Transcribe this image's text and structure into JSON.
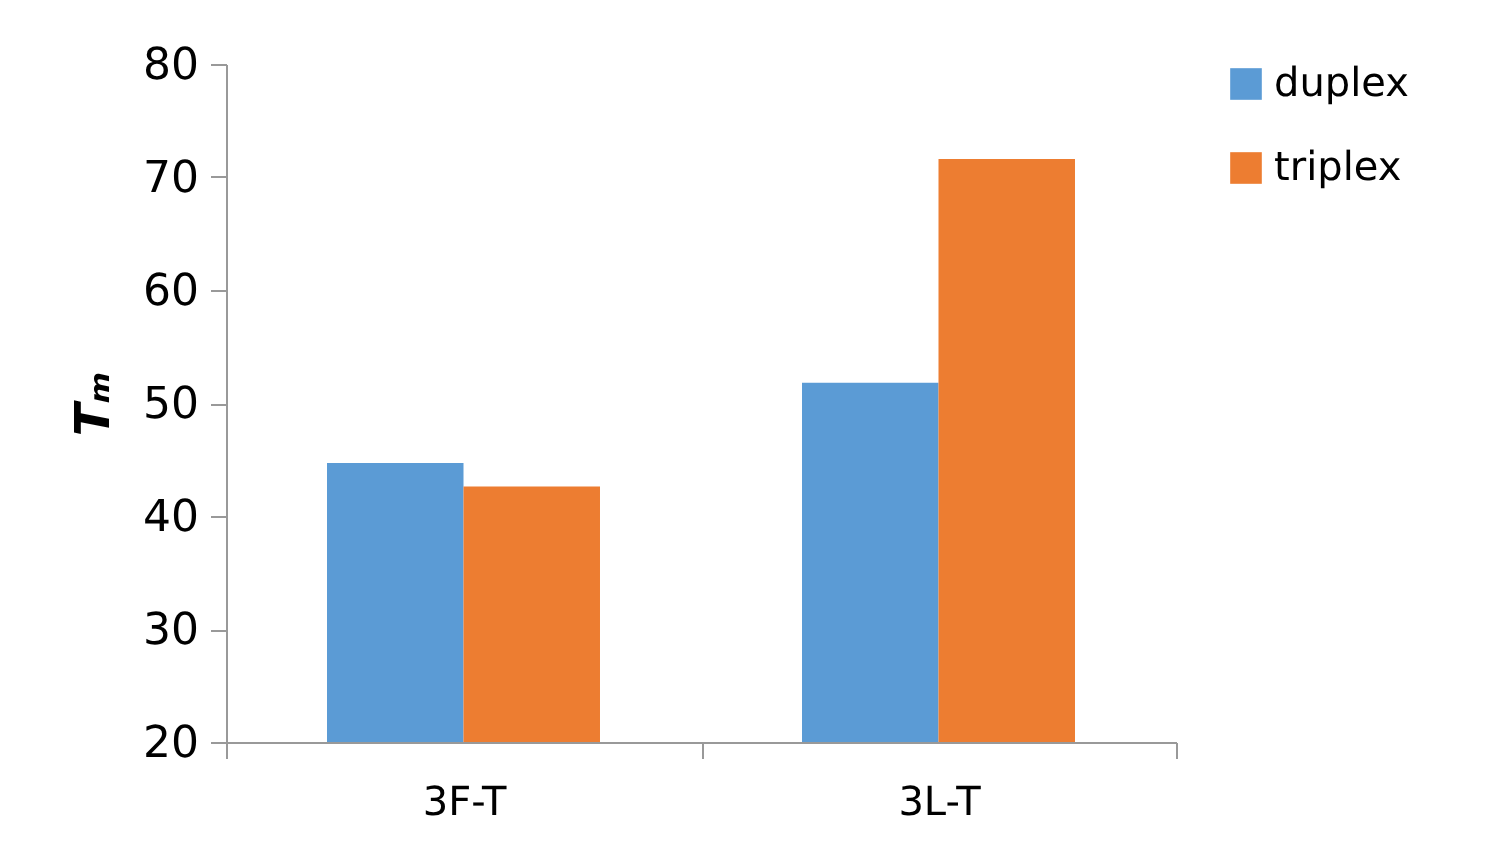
{
  "chart_data": {
    "type": "bar",
    "ylabel": "Tₘ",
    "categories": [
      "3F-T",
      "3L-T"
    ],
    "series": [
      {
        "name": "duplex",
        "color": "#5b9bd5",
        "values": [
          44.7,
          51.8
        ]
      },
      {
        "name": "triplex",
        "color": "#ed7d31",
        "values": [
          42.6,
          71.6
        ]
      }
    ],
    "ylim": [
      20,
      80
    ],
    "yticks": [
      20,
      30,
      40,
      50,
      60,
      70,
      80
    ],
    "grid": false,
    "legend": "right"
  }
}
